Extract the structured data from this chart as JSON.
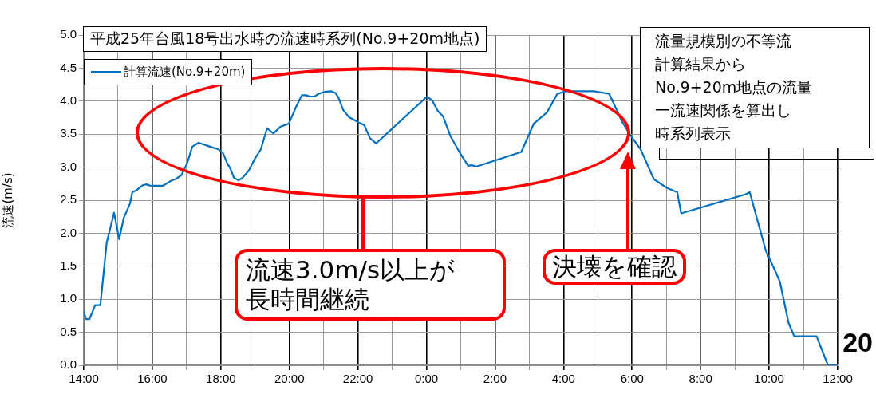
{
  "chart_data": {
    "type": "line",
    "title": "平成25年台風18号出水時の流速時系列(No.9+20m地点)",
    "ylabel": "流速(m/s)",
    "legend": "top left",
    "grid": true,
    "marker": "none",
    "line_style": "solid",
    "xlim": [
      "--09-15T14:00",
      "--09-16T12:00"
    ],
    "xticks": [
      {
        "value": "--09-15T14:00",
        "label": "14:00"
      },
      {
        "value": "--09-15T15:00",
        "label": null
      },
      {
        "value": "--09-15T16:00",
        "label": "16:00"
      },
      {
        "value": "--09-15T17:00",
        "label": null
      },
      {
        "value": "--09-15T18:00",
        "label": "18:00"
      },
      {
        "value": "--09-15T19:00",
        "label": null
      },
      {
        "value": "--09-15T20:00",
        "label": "20:00"
      },
      {
        "value": "--09-15T21:00",
        "label": null
      },
      {
        "value": "--09-15T22:00",
        "label": "22:00"
      },
      {
        "value": "--09-15T23:00",
        "label": null
      },
      {
        "value": "--09-16T00:00",
        "label": "0:00"
      },
      {
        "value": "--09-16T01:00",
        "label": null
      },
      {
        "value": "--09-16T02:00",
        "label": "2:00"
      },
      {
        "value": "--09-16T03:00",
        "label": null
      },
      {
        "value": "--09-16T04:00",
        "label": "4:00"
      },
      {
        "value": "--09-16T05:00",
        "label": null
      },
      {
        "value": "--09-16T06:00",
        "label": "6:00"
      },
      {
        "value": "--09-16T07:00",
        "label": null
      },
      {
        "value": "--09-16T08:00",
        "label": "8:00"
      },
      {
        "value": "--09-16T09:00",
        "label": null
      },
      {
        "value": "--09-16T10:00",
        "label": "10:00"
      },
      {
        "value": "--09-16T11:00",
        "label": null
      },
      {
        "value": "--09-16T12:00",
        "label": "12:00"
      }
    ],
    "ylim": [
      0,
      5
    ],
    "yticks": [
      {
        "value": 0,
        "label": "0.0"
      },
      {
        "value": 0.5,
        "label": "0.5"
      },
      {
        "value": 1,
        "label": "1.0"
      },
      {
        "value": 1.5,
        "label": "1.5"
      },
      {
        "value": 2,
        "label": "2.0"
      },
      {
        "value": 2.5,
        "label": "2.5"
      },
      {
        "value": 3,
        "label": "3.0"
      },
      {
        "value": 3.5,
        "label": "3.5"
      },
      {
        "value": 4,
        "label": "4.0"
      },
      {
        "value": 4.5,
        "label": "4.5"
      },
      {
        "value": 5,
        "label": "5.0"
      }
    ],
    "annotations": [
      "流速3.0m/s以上が",
      "長時間継続",
      "決壊を確認",
      "流量規模別の不等流",
      "計算結果から",
      "No.9+20m地点の流量",
      "一流速関係を算出し",
      "時系列表示",
      "20"
    ],
    "series": [
      {
        "name": "計算流速(No.9+20m)",
        "color": "#0070c0",
        "x": [
          "--09-15T14:00",
          "--09-15T14:04",
          "--09-15T14:10",
          "--09-15T14:20",
          "--09-15T14:29",
          "--09-15T14:40",
          "--09-15T14:53",
          "--09-15T15:02",
          "--09-15T15:10",
          "--09-15T15:21",
          "--09-15T15:25",
          "--09-15T15:32",
          "--09-15T15:44",
          "--09-15T15:50",
          "--09-15T15:56",
          "--09-15T16:19",
          "--09-15T16:34",
          "--09-15T16:41",
          "--09-15T16:51",
          "--09-15T17:01",
          "--09-15T17:10",
          "--09-15T17:21",
          "--09-15T17:38",
          "--09-15T17:56",
          "--09-15T18:04",
          "--09-15T18:11",
          "--09-15T18:16",
          "--09-15T18:23",
          "--09-15T18:31",
          "--09-15T18:38",
          "--09-15T18:49",
          "--09-15T18:59",
          "--09-15T19:10",
          "--09-15T19:21",
          "--09-15T19:32",
          "--09-15T19:44",
          "--09-15T19:59",
          "--09-15T20:11",
          "--09-15T20:22",
          "--09-15T20:29",
          "--09-15T20:36",
          "--09-15T20:44",
          "--09-15T20:51",
          "--09-15T21:01",
          "--09-15T21:13",
          "--09-15T21:21",
          "--09-15T21:26",
          "--09-15T21:34",
          "--09-15T21:44",
          "--09-15T21:59",
          "--09-15T22:02",
          "--09-15T22:11",
          "--09-15T22:21",
          "--09-15T22:32",
          "--09-16T00:01",
          "--09-16T00:10",
          "--09-16T00:20",
          "--09-16T00:29",
          "--09-16T00:42",
          "--09-16T00:59",
          "--09-16T01:13",
          "--09-16T01:19",
          "--09-16T01:28",
          "--09-16T02:46",
          "--09-16T03:08",
          "--09-16T03:31",
          "--09-16T03:49",
          "--09-16T04:04",
          "--09-16T04:53",
          "--09-16T05:20",
          "--09-16T05:43",
          "--09-16T05:58",
          "--09-16T06:15",
          "--09-16T06:38",
          "--09-16T07:00",
          "--09-16T07:19",
          "--09-16T07:26",
          "--09-16T09:19",
          "--09-16T09:26",
          "--09-16T09:54",
          "--09-16T10:11",
          "--09-16T10:19",
          "--09-16T10:34",
          "--09-16T10:44",
          "--09-16T11:23",
          "--09-16T11:43",
          "--09-16T12:00"
        ],
        "values": [
          0.81,
          0.7,
          0.7,
          0.91,
          0.91,
          1.85,
          2.31,
          1.91,
          2.23,
          2.45,
          2.62,
          2.65,
          2.73,
          2.74,
          2.72,
          2.72,
          2.8,
          2.82,
          2.88,
          3.06,
          3.31,
          3.37,
          3.32,
          3.27,
          3.21,
          3.06,
          2.99,
          2.84,
          2.8,
          2.84,
          2.95,
          3.12,
          3.27,
          3.59,
          3.51,
          3.61,
          3.66,
          3.9,
          4.09,
          4.09,
          4.07,
          4.07,
          4.11,
          4.14,
          4.15,
          4.12,
          4.05,
          3.87,
          3.76,
          3.69,
          3.67,
          3.64,
          3.44,
          3.36,
          4.07,
          4.01,
          3.85,
          3.77,
          3.47,
          3.21,
          3.02,
          3.03,
          3.01,
          3.23,
          3.66,
          3.83,
          4.11,
          4.15,
          4.15,
          4.11,
          3.68,
          3.47,
          3.27,
          2.82,
          2.69,
          2.62,
          2.3,
          2.59,
          2.62,
          1.74,
          1.42,
          1.26,
          0.64,
          0.44,
          0.44,
          0.0,
          0.0
        ]
      }
    ]
  }
}
